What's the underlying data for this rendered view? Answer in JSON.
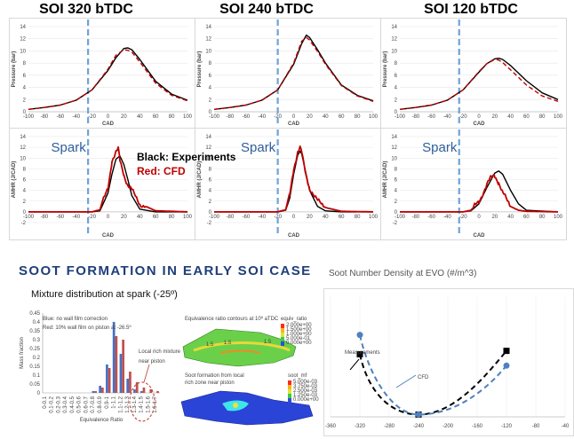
{
  "titles": {
    "soi1": "SOI 320 bTDC",
    "soi2": "SOI 240 bTDC",
    "soi3": "SOI 120 bTDC"
  },
  "legend": {
    "black": "Black: Experiments",
    "red": "Red: CFD"
  },
  "spark_label": "Spark",
  "section_title": "SOOT FORMATION IN EARLY SOI CASE",
  "mixture": {
    "title": "Mixture distribution at spark (-25º)",
    "legend_blue": "Blue:   no wall film correction",
    "legend_red": "Red:   10% wall film on piston at -26.5º",
    "annotation": "Local rich mixture near piston",
    "contour_label": "Equivalence ratio contours at 10º aTDC",
    "soot_label": "Soot formation from local rich zone near piston",
    "equiv_title": "equiv_ratio",
    "equiv_ticks": [
      "2.000e+00",
      "1.500e+00",
      "1.000e+00",
      "5.000e-01",
      "0.000e+00"
    ],
    "soot_title": "soot_mf",
    "soot_ticks": [
      "5.000e-03",
      "3.750e-03",
      "2.500e-03",
      "1.250e-03",
      "0.000e+00"
    ],
    "xlabel": "Equivalence Ratio",
    "ylabel": "Mass fraction",
    "y_ticks": [
      "0",
      "0.05",
      "0.1",
      "0.15",
      "0.2",
      "0.25",
      "0.3",
      "0.35",
      "0.4",
      "0.45"
    ],
    "contour_numbers": [
      "1.5",
      "1.5",
      "1.5"
    ],
    "colors": {
      "blue": "#4472c4",
      "red": "#c0504d"
    }
  },
  "soot": {
    "title": "Soot Number Density at EVO (#/m^3)",
    "measurements_label": "Measurements",
    "cfd_label": "CFD",
    "x_ticks": [
      "-360",
      "-320",
      "-280",
      "-240",
      "-200",
      "-160",
      "-120",
      "-80",
      "-40"
    ]
  },
  "chart_data": [
    {
      "type": "line",
      "panel": "pressure-soi320",
      "xlabel": "CAD",
      "ylabel": "Pressure (bar)",
      "xlim": [
        -100,
        100
      ],
      "ylim": [
        0,
        14
      ],
      "spark_cad": -25,
      "series": [
        {
          "color": "#000000",
          "style": "solid",
          "x": [
            -100,
            -80,
            -60,
            -40,
            -20,
            0,
            10,
            20,
            25,
            30,
            40,
            60,
            80,
            100
          ],
          "y": [
            0.4,
            0.7,
            1.1,
            1.9,
            3.6,
            6.8,
            8.9,
            10.4,
            10.5,
            10.2,
            8.6,
            5.0,
            2.9,
            1.9
          ]
        },
        {
          "color": "#c00000",
          "style": "dash",
          "x": [
            -100,
            -80,
            -60,
            -40,
            -20,
            0,
            10,
            20,
            25,
            30,
            40,
            60,
            80,
            100
          ],
          "y": [
            0.4,
            0.7,
            1.1,
            1.9,
            3.6,
            7.0,
            9.3,
            10.2,
            10.1,
            9.8,
            8.2,
            4.7,
            2.7,
            1.8
          ]
        }
      ]
    },
    {
      "type": "line",
      "panel": "pressure-soi240",
      "xlabel": "CAD",
      "ylabel": "Pressure (bar)",
      "xlim": [
        -100,
        100
      ],
      "ylim": [
        0,
        14
      ],
      "spark_cad": -20,
      "series": [
        {
          "color": "#000000",
          "style": "solid",
          "x": [
            -100,
            -80,
            -60,
            -40,
            -20,
            0,
            10,
            16,
            20,
            30,
            40,
            60,
            80,
            100
          ],
          "y": [
            0.4,
            0.7,
            1.1,
            1.9,
            3.6,
            7.8,
            11.2,
            12.6,
            12.2,
            10.2,
            8.0,
            4.4,
            2.7,
            1.8
          ]
        },
        {
          "color": "#c00000",
          "style": "dash",
          "x": [
            -100,
            -80,
            -60,
            -40,
            -20,
            0,
            10,
            16,
            20,
            30,
            40,
            60,
            80,
            100
          ],
          "y": [
            0.4,
            0.7,
            1.1,
            1.9,
            3.6,
            8.0,
            11.6,
            12.2,
            11.8,
            9.9,
            7.8,
            4.3,
            2.6,
            1.7
          ]
        }
      ]
    },
    {
      "type": "line",
      "panel": "pressure-soi120",
      "xlabel": "CAD",
      "ylabel": "Pressure (bar)",
      "xlim": [
        -100,
        100
      ],
      "ylim": [
        0,
        14
      ],
      "spark_cad": -25,
      "series": [
        {
          "color": "#000000",
          "style": "solid",
          "x": [
            -100,
            -80,
            -60,
            -40,
            -20,
            0,
            10,
            20,
            25,
            30,
            40,
            60,
            80,
            100
          ],
          "y": [
            0.4,
            0.7,
            1.1,
            1.9,
            3.6,
            6.5,
            7.9,
            8.7,
            8.8,
            8.6,
            7.6,
            5.1,
            3.1,
            2.0
          ]
        },
        {
          "color": "#c00000",
          "style": "dash",
          "x": [
            -100,
            -80,
            -60,
            -40,
            -20,
            0,
            10,
            20,
            25,
            30,
            40,
            60,
            80,
            100
          ],
          "y": [
            0.4,
            0.7,
            1.1,
            1.9,
            3.6,
            6.6,
            7.9,
            8.6,
            8.5,
            8.1,
            6.9,
            4.4,
            2.6,
            1.7
          ]
        }
      ]
    },
    {
      "type": "line",
      "panel": "amhr-soi320",
      "xlabel": "CAD",
      "ylabel": "AMHR (J/CAD)",
      "xlim": [
        -100,
        100
      ],
      "ylim": [
        -2,
        14
      ],
      "spark_cad": -25,
      "series": [
        {
          "color": "#000000",
          "style": "solid",
          "x": [
            -100,
            -20,
            -10,
            0,
            5,
            10,
            15,
            20,
            25,
            30,
            40,
            60,
            100
          ],
          "y": [
            0,
            0,
            0.2,
            3.5,
            7.0,
            9.8,
            10.4,
            8.8,
            6.0,
            3.0,
            0.5,
            0,
            0
          ]
        },
        {
          "color": "#c00000",
          "style": "noisy",
          "x": [
            -100,
            -20,
            -10,
            0,
            5,
            10,
            13,
            15,
            20,
            25,
            30,
            40,
            60,
            100
          ],
          "y": [
            0,
            0,
            0.4,
            4.5,
            9.5,
            11.0,
            11.6,
            9.5,
            7.0,
            5.0,
            4.0,
            1.5,
            0.2,
            0
          ]
        }
      ]
    },
    {
      "type": "line",
      "panel": "amhr-soi240",
      "xlabel": "CAD",
      "ylabel": "AMHR (J/CAD)",
      "xlim": [
        -100,
        100
      ],
      "ylim": [
        -2,
        14
      ],
      "spark_cad": -20,
      "series": [
        {
          "color": "#000000",
          "style": "solid",
          "x": [
            -100,
            -20,
            -10,
            -5,
            0,
            5,
            8,
            10,
            15,
            20,
            30,
            40,
            60,
            100
          ],
          "y": [
            0,
            0,
            0.3,
            2.5,
            7.0,
            10.5,
            11.3,
            10.8,
            7.5,
            4.0,
            1.0,
            0.2,
            0,
            0
          ]
        },
        {
          "color": "#c00000",
          "style": "noisy",
          "x": [
            -100,
            -20,
            -10,
            -5,
            0,
            5,
            8,
            10,
            15,
            20,
            30,
            40,
            60,
            100
          ],
          "y": [
            0,
            0,
            0.4,
            3.0,
            8.0,
            11.2,
            12.0,
            11.0,
            7.0,
            4.5,
            2.0,
            0.8,
            0.1,
            0
          ]
        }
      ]
    },
    {
      "type": "line",
      "panel": "amhr-soi120",
      "xlabel": "CAD",
      "ylabel": "AMHR (J/CAD)",
      "xlim": [
        -100,
        100
      ],
      "ylim": [
        -2,
        14
      ],
      "spark_cad": -25,
      "series": [
        {
          "color": "#000000",
          "style": "solid",
          "x": [
            -100,
            -20,
            -10,
            0,
            10,
            20,
            25,
            30,
            40,
            50,
            60,
            100
          ],
          "y": [
            0,
            0,
            0.2,
            1.5,
            4.5,
            7.2,
            7.6,
            7.0,
            4.0,
            1.5,
            0.3,
            0
          ]
        },
        {
          "color": "#c00000",
          "style": "noisy",
          "x": [
            -100,
            -20,
            -10,
            0,
            10,
            15,
            20,
            25,
            30,
            40,
            50,
            60,
            100
          ],
          "y": [
            0,
            0,
            0.3,
            2.0,
            5.0,
            6.3,
            6.8,
            5.5,
            3.5,
            1.0,
            0.3,
            0.1,
            0
          ]
        }
      ]
    },
    {
      "type": "bar",
      "panel": "mixture-histogram",
      "xlabel": "Equivalence Ratio",
      "ylabel": "Mass fraction",
      "ylim": [
        0,
        0.45
      ],
      "categories": [
        "0-0.1",
        "0.1-0.2",
        "0.2-0.3",
        "0.3-0.4",
        "0.4-0.5",
        "0.5-0.6",
        "0.6-0.7",
        "0.7-0.8",
        "0.8-0.9",
        "0.9-1",
        "1-1.1",
        "1.1-1.2",
        "1.2-1.3",
        "1.3-1.4",
        "1.4-1.5",
        "1.5-1.6",
        "1.6-1.7"
      ],
      "series": [
        {
          "name": "Blue",
          "values": [
            0,
            0,
            0,
            0,
            0,
            0,
            0,
            0.01,
            0.04,
            0.16,
            0.4,
            0.22,
            0.08,
            0.02,
            0.01,
            0,
            0
          ]
        },
        {
          "name": "Red",
          "values": [
            0,
            0,
            0,
            0,
            0,
            0,
            0,
            0.01,
            0.03,
            0.14,
            0.32,
            0.3,
            0.12,
            0.06,
            0.03,
            0.02,
            0.01
          ]
        }
      ]
    },
    {
      "type": "line",
      "panel": "soot-number-density",
      "xlim": [
        -360,
        -40
      ],
      "series": [
        {
          "name": "Measurements",
          "color": "#000000",
          "x": [
            -320,
            -240,
            -120
          ],
          "y": [
            0.55,
            0.02,
            0.58
          ]
        },
        {
          "name": "CFD",
          "color": "#4f81bd",
          "x": [
            -320,
            -240,
            -120
          ],
          "y": [
            0.72,
            0.02,
            0.45
          ]
        }
      ]
    }
  ]
}
